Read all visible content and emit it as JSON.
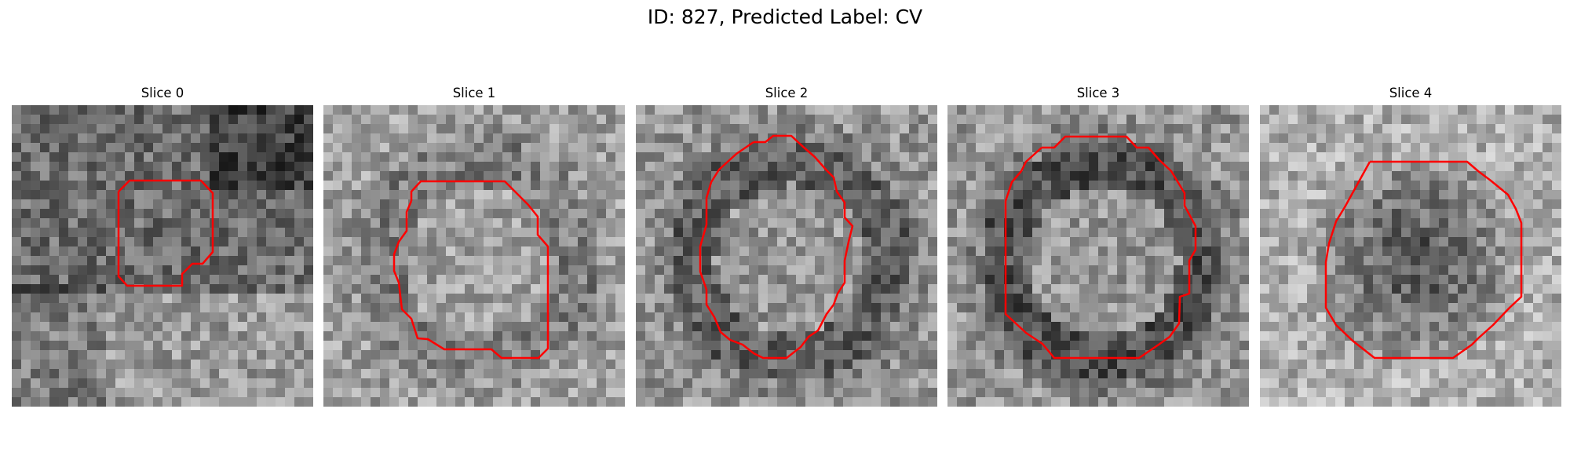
{
  "figure": {
    "title": "ID: 827, Predicted Label: CV"
  },
  "colors": {
    "background": "#ffffff",
    "contour": "#ff0000"
  },
  "panels": [
    {
      "title": "Slice 0",
      "seed": 827001,
      "base": 110,
      "rim": 0,
      "texture": "dark-right-top, bright-bottom"
    },
    {
      "title": "Slice 1",
      "seed": 827011,
      "base": 160,
      "rim": 35,
      "texture": "dark ring"
    },
    {
      "title": "Slice 2",
      "seed": 827021,
      "base": 150,
      "rim": 55,
      "texture": "dark ring"
    },
    {
      "title": "Slice 3",
      "seed": 827031,
      "base": 150,
      "rim": 70,
      "texture": "dark ring"
    },
    {
      "title": "Slice 4",
      "seed": 827041,
      "base": 175,
      "rim": 100,
      "texture": "dark disk"
    }
  ]
}
